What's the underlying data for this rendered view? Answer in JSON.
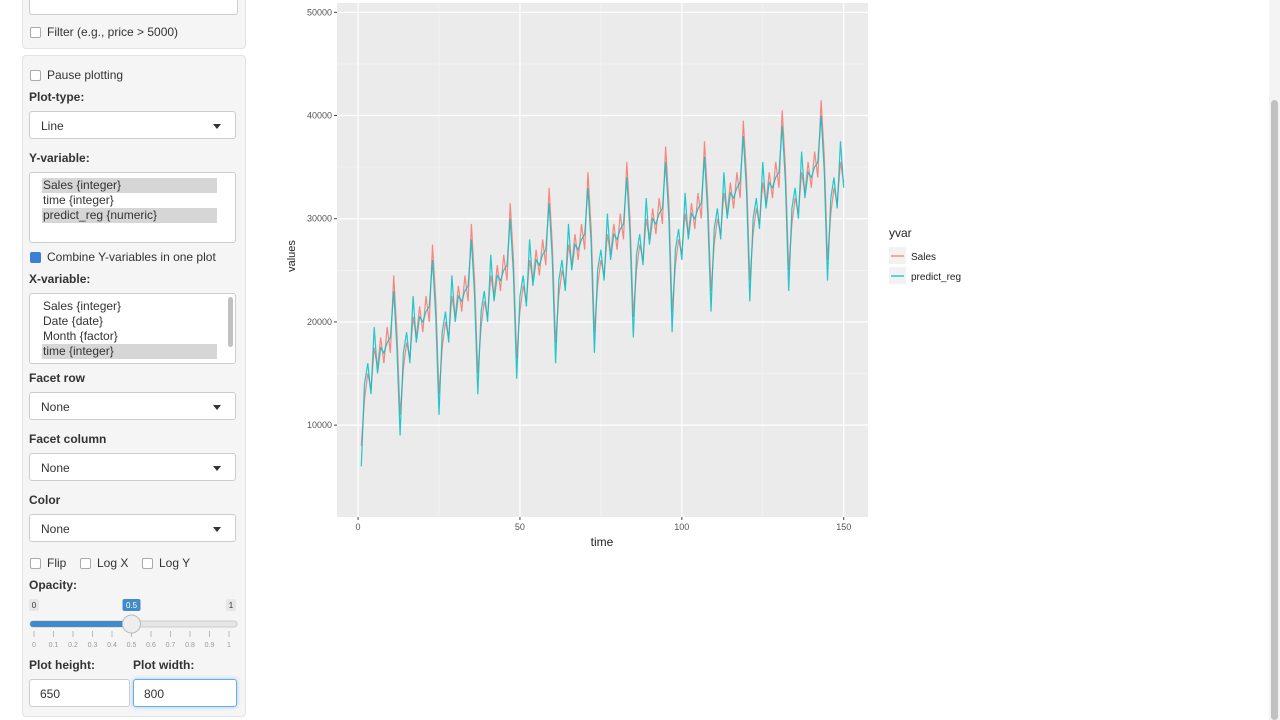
{
  "sidebar": {
    "filter": "Filter (e.g., price > 5000)",
    "pause": "Pause plotting",
    "plot_type_label": "Plot-type:",
    "plot_type": "Line",
    "y_label": "Y-variable:",
    "y_options": [
      "Sales {integer}",
      "time {integer}",
      "predict_reg {numeric}"
    ],
    "y_selected": [
      true,
      false,
      true
    ],
    "combine": "Combine Y-variables in one plot",
    "combine_checked": true,
    "x_label": "X-variable:",
    "x_options": [
      "Sales {integer}",
      "Date {date}",
      "Month {factor}",
      "time {integer}"
    ],
    "x_selected": [
      false,
      false,
      false,
      true
    ],
    "facet_row_label": "Facet row",
    "facet_row": "None",
    "facet_col_label": "Facet column",
    "facet_col": "None",
    "color_label": "Color",
    "color": "None",
    "flip": "Flip",
    "log_x": "Log X",
    "log_y": "Log Y",
    "opacity_label": "Opacity:",
    "slider": {
      "min": 0,
      "max": 1,
      "value": 0.5,
      "ticks": [
        0,
        0.1,
        0.2,
        0.3,
        0.4,
        0.5,
        0.6,
        0.7,
        0.8,
        0.9,
        1
      ]
    },
    "height_label": "Plot height:",
    "height": 650,
    "width_label": "Plot width:",
    "width": 800
  },
  "chart_data": {
    "type": "line",
    "xlabel": "time",
    "ylabel": "values",
    "legend_title": "yvar",
    "xlim": [
      -6.5,
      157.5
    ],
    "ylim": [
      1100,
      50900
    ],
    "xticks": [
      0,
      50,
      100,
      150
    ],
    "yticks": [
      10000,
      20000,
      30000,
      40000,
      50000
    ],
    "grid": true,
    "x": [
      1,
      2,
      3,
      4,
      5,
      6,
      7,
      8,
      9,
      10,
      11,
      12,
      13,
      14,
      15,
      16,
      17,
      18,
      19,
      20,
      21,
      22,
      23,
      24,
      25,
      26,
      27,
      28,
      29,
      30,
      31,
      32,
      33,
      34,
      35,
      36,
      37,
      38,
      39,
      40,
      41,
      42,
      43,
      44,
      45,
      46,
      47,
      48,
      49,
      50,
      51,
      52,
      53,
      54,
      55,
      56,
      57,
      58,
      59,
      60,
      61,
      62,
      63,
      64,
      65,
      66,
      67,
      68,
      69,
      70,
      71,
      72,
      73,
      74,
      75,
      76,
      77,
      78,
      79,
      80,
      81,
      82,
      83,
      84,
      85,
      86,
      87,
      88,
      89,
      90,
      91,
      92,
      93,
      94,
      95,
      96,
      97,
      98,
      99,
      100,
      101,
      102,
      103,
      104,
      105,
      106,
      107,
      108,
      109,
      110,
      111,
      112,
      113,
      114,
      115,
      116,
      117,
      118,
      119,
      120,
      121,
      122,
      123,
      124,
      125,
      126,
      127,
      128,
      129,
      130,
      131,
      132,
      133,
      134,
      135,
      136,
      137,
      138,
      139,
      140,
      141,
      142,
      143,
      144,
      145,
      146,
      147,
      148,
      149,
      150
    ],
    "series": [
      {
        "name": "Sales",
        "color": "#F8766D",
        "values": [
          8000,
          12500,
          15000,
          13500,
          17500,
          15500,
          18500,
          16000,
          19500,
          17000,
          24500,
          19000,
          11000,
          15500,
          18000,
          16500,
          20500,
          18500,
          21500,
          19000,
          22500,
          20000,
          27500,
          22000,
          13000,
          17500,
          20000,
          18500,
          22500,
          20500,
          23500,
          21000,
          24500,
          22000,
          29500,
          24000,
          15000,
          19500,
          22000,
          20500,
          24500,
          22500,
          25500,
          23000,
          26500,
          24000,
          31500,
          26000,
          16500,
          21000,
          23500,
          22000,
          26000,
          24000,
          27000,
          24500,
          28000,
          25500,
          33000,
          27500,
          18000,
          22500,
          25000,
          23500,
          27500,
          25500,
          28500,
          26000,
          29500,
          27000,
          34500,
          29000,
          19000,
          23500,
          26000,
          24500,
          28500,
          26500,
          29500,
          27000,
          30500,
          28000,
          35500,
          30000,
          20500,
          25000,
          27500,
          26000,
          30000,
          28000,
          31000,
          28500,
          32000,
          29500,
          37000,
          31500,
          21000,
          25500,
          28000,
          26500,
          30500,
          28500,
          31500,
          29000,
          32500,
          30000,
          37500,
          32000,
          23000,
          27500,
          30000,
          28500,
          32500,
          30500,
          33500,
          31000,
          34500,
          32000,
          39500,
          34000,
          24000,
          28500,
          31000,
          29500,
          33500,
          31500,
          34500,
          32000,
          35500,
          33000,
          40500,
          35000,
          25000,
          29500,
          32000,
          30500,
          34500,
          32500,
          35500,
          33000,
          36500,
          34000,
          41500,
          36000,
          26000,
          30500,
          33000,
          31500,
          35500,
          33500
        ]
      },
      {
        "name": "predict_reg",
        "color": "#00BFC4",
        "values": [
          6000,
          14000,
          16000,
          13000,
          19500,
          15000,
          17500,
          17000,
          18000,
          18500,
          23000,
          17500,
          9000,
          17000,
          19000,
          16000,
          22500,
          18000,
          20500,
          20000,
          21000,
          21500,
          26000,
          20500,
          11000,
          19000,
          21000,
          18000,
          24500,
          20000,
          22500,
          22000,
          23000,
          23500,
          28000,
          22500,
          13000,
          21000,
          23000,
          20000,
          26500,
          22000,
          24500,
          24000,
          25000,
          25500,
          30000,
          24500,
          14500,
          22500,
          24500,
          21500,
          28000,
          23500,
          26000,
          25500,
          26500,
          27000,
          31500,
          26000,
          16000,
          24000,
          26000,
          23000,
          29500,
          25000,
          27500,
          27000,
          28000,
          28500,
          33000,
          27500,
          17000,
          25000,
          27000,
          24000,
          30500,
          26000,
          28500,
          28000,
          29000,
          29500,
          34000,
          28500,
          18500,
          26500,
          28500,
          25500,
          32000,
          27500,
          30000,
          29500,
          30500,
          31000,
          35500,
          30000,
          19000,
          27000,
          29000,
          26000,
          32500,
          28000,
          30500,
          30000,
          31000,
          31500,
          36000,
          30500,
          21000,
          29000,
          31000,
          28000,
          34500,
          30000,
          32500,
          32000,
          33000,
          33500,
          38000,
          32500,
          22000,
          30000,
          32000,
          29000,
          35500,
          31000,
          33500,
          33000,
          34000,
          34500,
          39000,
          33500,
          23000,
          31000,
          33000,
          30000,
          36500,
          32000,
          34500,
          34000,
          35000,
          35500,
          40000,
          34500,
          24000,
          32000,
          34000,
          31000,
          37500,
          33000
        ]
      }
    ]
  }
}
